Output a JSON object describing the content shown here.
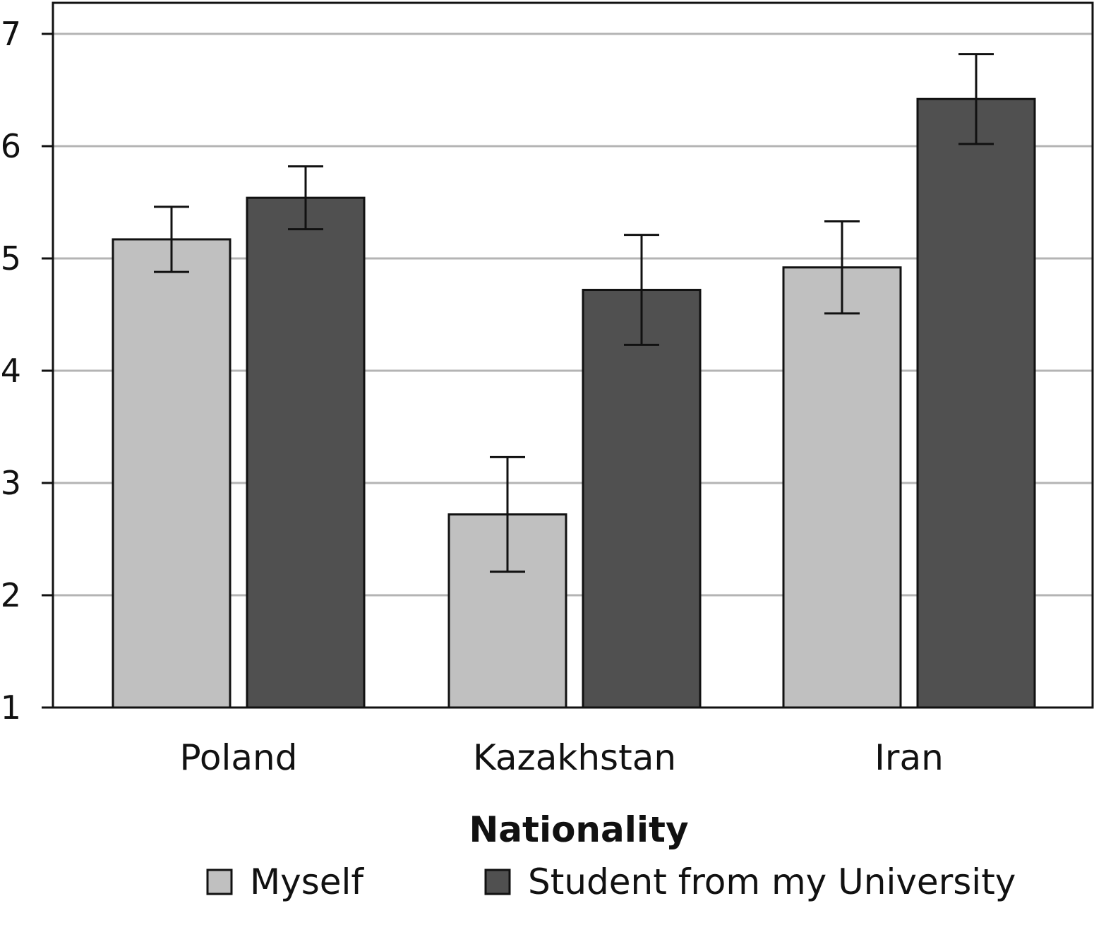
{
  "chart_data": {
    "type": "bar",
    "xlabel": "Nationality",
    "ylabel": "",
    "ylim": [
      1,
      7
    ],
    "yticks": [
      1,
      2,
      3,
      4,
      5,
      6,
      7
    ],
    "grid": true,
    "legend_position": "bottom",
    "categories": [
      "Poland",
      "Kazakhstan",
      "Iran"
    ],
    "series": [
      {
        "name": "Myself",
        "color": "#c0c0c0",
        "values": [
          5.17,
          2.72,
          4.92
        ],
        "error": [
          0.29,
          0.51,
          0.41
        ]
      },
      {
        "name": "Student from my University",
        "color": "#505050",
        "values": [
          5.54,
          4.72,
          6.42
        ],
        "error": [
          0.28,
          0.49,
          0.4
        ]
      }
    ]
  }
}
